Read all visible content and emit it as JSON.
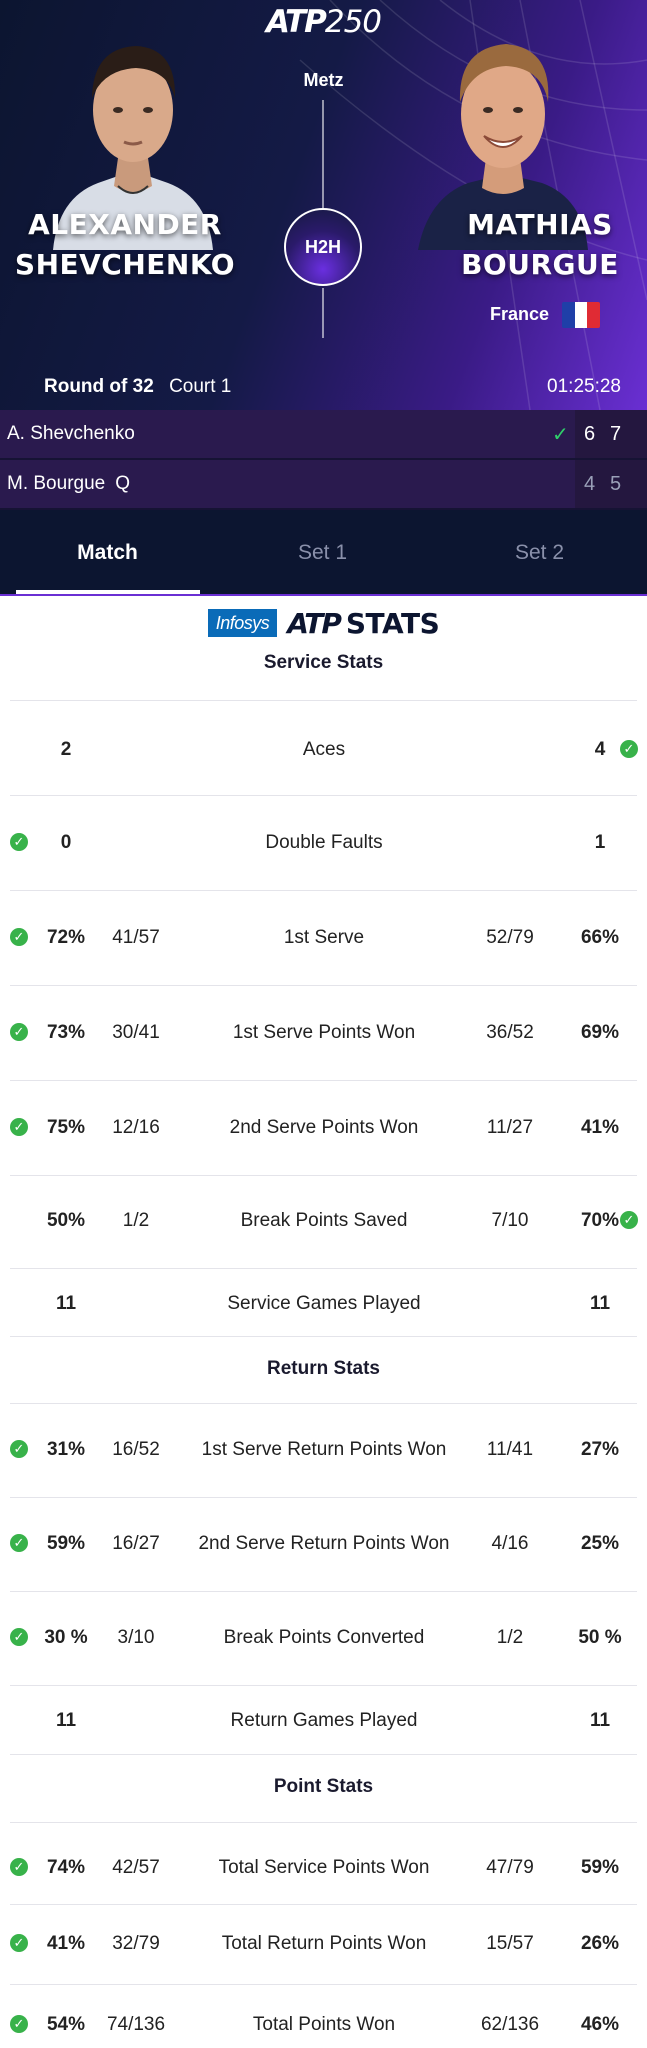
{
  "header": {
    "logo_atp": "ATP",
    "logo_tier": "250",
    "city": "Metz"
  },
  "players": {
    "left": {
      "name_line1": "ALEXANDER",
      "name_line2": "SHEVCHENKO"
    },
    "right": {
      "name_line1": "MATHIAS",
      "name_line2": "BOURGUE",
      "country": "France"
    }
  },
  "h2h_label": "H2H",
  "match_info": {
    "round": "Round of 32",
    "court": "Court 1",
    "duration": "01:25:28"
  },
  "scoreboard": [
    {
      "name": "A. Shevchenko",
      "tag": "",
      "winner": true,
      "set1": "6",
      "set2": "7"
    },
    {
      "name": "M. Bourgue",
      "tag": "Q",
      "winner": false,
      "set1": "4",
      "set2": "5"
    }
  ],
  "tabs": [
    {
      "label": "Match",
      "active": true
    },
    {
      "label": "Set 1",
      "active": false
    },
    {
      "label": "Set 2",
      "active": false
    }
  ],
  "brand": {
    "infosys": "Infosys",
    "atp": "ATP",
    "stats": "STATS"
  },
  "sections": {
    "service": "Service Stats",
    "return": "Return Stats",
    "point": "Point Stats"
  },
  "service_stats": [
    {
      "label": "Aces",
      "left_value": "2",
      "left_frac": "",
      "right_frac": "",
      "right_value": "4",
      "leader": "right"
    },
    {
      "label": "Double Faults",
      "left_value": "0",
      "left_frac": "",
      "right_frac": "",
      "right_value": "1",
      "leader": "left"
    },
    {
      "label": "1st Serve",
      "left_value": "72%",
      "left_frac": "41/57",
      "right_frac": "52/79",
      "right_value": "66%",
      "leader": "left"
    },
    {
      "label": "1st Serve Points Won",
      "left_value": "73%",
      "left_frac": "30/41",
      "right_frac": "36/52",
      "right_value": "69%",
      "leader": "left"
    },
    {
      "label": "2nd Serve Points Won",
      "left_value": "75%",
      "left_frac": "12/16",
      "right_frac": "11/27",
      "right_value": "41%",
      "leader": "left"
    },
    {
      "label": "Break Points Saved",
      "left_value": "50%",
      "left_frac": "1/2",
      "right_frac": "7/10",
      "right_value": "70%",
      "leader": "right"
    },
    {
      "label": "Service Games Played",
      "left_value": "11",
      "left_frac": "",
      "right_frac": "",
      "right_value": "11",
      "leader": "none"
    }
  ],
  "return_stats": [
    {
      "label": "1st Serve Return Points Won",
      "left_value": "31%",
      "left_frac": "16/52",
      "right_frac": "11/41",
      "right_value": "27%",
      "leader": "left"
    },
    {
      "label": "2nd Serve Return Points Won",
      "left_value": "59%",
      "left_frac": "16/27",
      "right_frac": "4/16",
      "right_value": "25%",
      "leader": "left"
    },
    {
      "label": "Break Points Converted",
      "left_value": "30 %",
      "left_frac": "3/10",
      "right_frac": "1/2",
      "right_value": "50 %",
      "leader": "left"
    },
    {
      "label": "Return Games Played",
      "left_value": "11",
      "left_frac": "",
      "right_frac": "",
      "right_value": "11",
      "leader": "none"
    }
  ],
  "point_stats": [
    {
      "label": "Total Service Points Won",
      "left_value": "74%",
      "left_frac": "42/57",
      "right_frac": "47/79",
      "right_value": "59%",
      "leader": "left"
    },
    {
      "label": "Total Return Points Won",
      "left_value": "41%",
      "left_frac": "32/79",
      "right_frac": "15/57",
      "right_value": "26%",
      "leader": "left"
    },
    {
      "label": "Total Points Won",
      "left_value": "54%",
      "left_frac": "74/136",
      "right_frac": "62/136",
      "right_value": "46%",
      "leader": "left"
    }
  ],
  "colors": {
    "hero_dark": "#0c1530",
    "hero_purple": "#6a2fd3",
    "check_green": "#38b24a",
    "score_tick": "#2fd06a"
  },
  "icons": {
    "check": "check-icon",
    "flag": "france-flag-icon"
  }
}
